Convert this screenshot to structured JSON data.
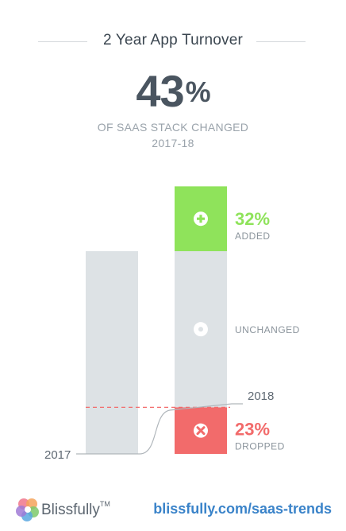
{
  "title": "2 Year App Turnover",
  "headline": {
    "value": "43",
    "symbol": "%"
  },
  "subtitle": {
    "line1": "OF SAAS STACK CHANGED",
    "line2": "2017-18"
  },
  "colors": {
    "added": "#8fe35b",
    "unchanged": "#dde2e5",
    "dropped": "#f26b6b",
    "text_dark": "#4a5560",
    "text_muted": "#8b949c",
    "link": "#3a83c9"
  },
  "chart_data": {
    "type": "bar",
    "categories": [
      "2017",
      "2018"
    ],
    "stack_2018": [
      {
        "name": "ADDED",
        "percent": 32,
        "label": "32%",
        "icon": "plus-circle-icon"
      },
      {
        "name": "UNCHANGED",
        "percent": 77,
        "label": "",
        "icon": "dot-circle-icon"
      },
      {
        "name": "DROPPED",
        "percent": 23,
        "label": "23%",
        "icon": "x-circle-icon"
      }
    ],
    "bar_2017_percent": 100,
    "year_labels": {
      "y2017": "2017",
      "y2018": "2018"
    },
    "unchanged_label": "UNCHANGED"
  },
  "footer": {
    "brand": "Blissfully",
    "trademark": "TM",
    "url": "blissfully.com/saas-trends"
  }
}
